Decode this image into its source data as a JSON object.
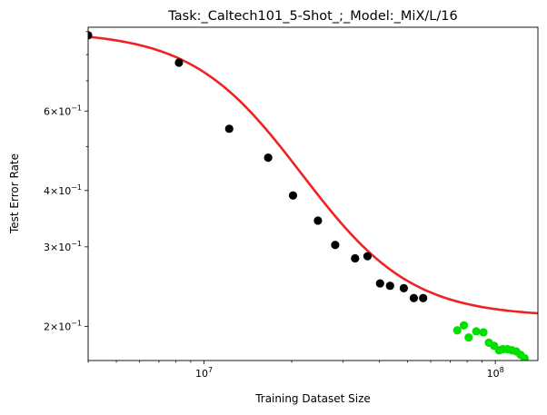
{
  "chart_data": {
    "type": "scatter",
    "title": "Task:_Caltech101_5-Shot_;_Model:_MiX/L/16",
    "xlabel": "Training Dataset Size",
    "ylabel": "Test Error Rate",
    "xscale": "log",
    "yscale": "log",
    "xlim": [
      4000000,
      140000000
    ],
    "ylim": [
      0.168,
      0.92
    ],
    "grid": false,
    "x_ticks": [
      {
        "value": 10000000,
        "base": "10",
        "exp": "7"
      },
      {
        "value": 100000000,
        "base": "10",
        "exp": "8"
      }
    ],
    "y_ticks": [
      {
        "value": 0.2,
        "mant": "2",
        "exp": "−1"
      },
      {
        "value": 0.3,
        "mant": "3",
        "exp": "−1"
      },
      {
        "value": 0.4,
        "mant": "4",
        "exp": "−1"
      },
      {
        "value": 0.6,
        "mant": "6",
        "exp": "−1"
      }
    ],
    "series": [
      {
        "color": "#000000",
        "marker": "circle",
        "points": [
          [
            4000000,
            0.883
          ],
          [
            8200000,
            0.768
          ],
          [
            12200000,
            0.548
          ],
          [
            16600000,
            0.473
          ],
          [
            20200000,
            0.39
          ],
          [
            24600000,
            0.343
          ],
          [
            28200000,
            0.303
          ],
          [
            33000000,
            0.283
          ],
          [
            36400000,
            0.286
          ],
          [
            40200000,
            0.249
          ],
          [
            43500000,
            0.246
          ],
          [
            48500000,
            0.243
          ],
          [
            52500000,
            0.231
          ],
          [
            56500000,
            0.231
          ]
        ]
      },
      {
        "color": "#00e000",
        "marker": "circle",
        "points": [
          [
            74000000,
            0.196
          ],
          [
            78000000,
            0.201
          ],
          [
            81000000,
            0.189
          ],
          [
            86000000,
            0.195
          ],
          [
            91000000,
            0.194
          ],
          [
            95000000,
            0.184
          ],
          [
            99000000,
            0.181
          ],
          [
            103000000,
            0.177
          ],
          [
            106000000,
            0.178
          ],
          [
            110000000,
            0.178
          ],
          [
            114000000,
            0.177
          ],
          [
            118000000,
            0.176
          ],
          [
            122000000,
            0.173
          ],
          [
            126000000,
            0.17
          ]
        ]
      },
      {
        "color": "#ee2222",
        "type": "line",
        "fit": {
          "form": "E + A/(1 + (x/x0)^b)",
          "E": 0.21,
          "A": 0.69,
          "x0": 16000000,
          "b": 2.4
        }
      }
    ]
  }
}
